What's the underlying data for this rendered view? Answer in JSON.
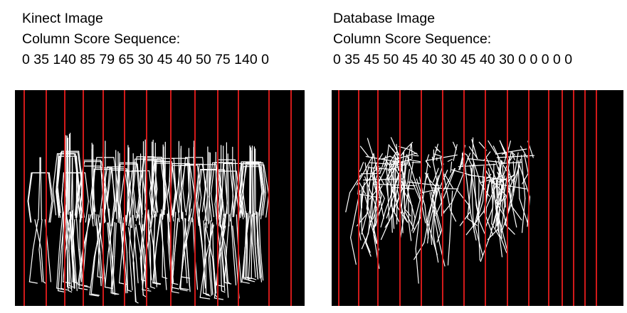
{
  "left": {
    "title": "Kinect Image",
    "subtitle": "Column Score Sequence:",
    "scores": "0 35 140 85 79 65 30 45 40 50 75 140 0"
  },
  "right": {
    "title": "Database Image",
    "subtitle": "Column Score Sequence:",
    "scores": "0 35 45 50 45 40 30 45 40 30 0 0 0 0 0"
  },
  "colors": {
    "background": "#000000",
    "column_line": "#d11a1a",
    "skeleton": "#ffffff"
  }
}
